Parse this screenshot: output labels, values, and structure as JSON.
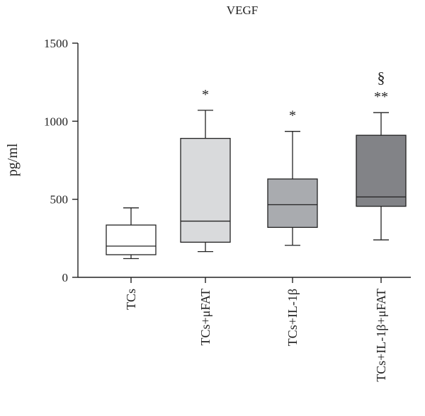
{
  "chart_data": {
    "type": "boxplot",
    "title": "VEGF",
    "ylabel": "pg/ml",
    "xlabel": "",
    "ylim": [
      0,
      1500
    ],
    "yticks": [
      0,
      500,
      1000,
      1500
    ],
    "grid": false,
    "categories": [
      "TCs",
      "TCs+μFAT",
      "TCs+IL-1β",
      "TCs+IL-1β+μFAT"
    ],
    "boxes": [
      {
        "min": 120,
        "q1": 145,
        "median": 200,
        "q3": 335,
        "max": 445,
        "fill": "#ffffff",
        "annotation": ""
      },
      {
        "min": 165,
        "q1": 225,
        "median": 360,
        "q3": 890,
        "max": 1070,
        "fill": "#d9dadc",
        "annotation": "*"
      },
      {
        "min": 205,
        "q1": 320,
        "median": 465,
        "q3": 630,
        "max": 935,
        "fill": "#a9abaf",
        "annotation": "*"
      },
      {
        "min": 240,
        "q1": 455,
        "median": 515,
        "q3": 910,
        "max": 1055,
        "fill": "#828387",
        "annotation": "**",
        "annotation2": "§"
      }
    ]
  }
}
